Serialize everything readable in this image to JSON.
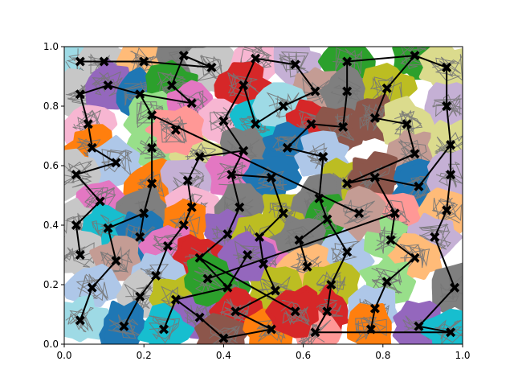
{
  "chart_data": {
    "type": "scatter",
    "title": "",
    "xlabel": "",
    "ylabel": "",
    "xlim": [
      0,
      1
    ],
    "ylim": [
      0,
      1
    ],
    "x_ticks": [
      "0.0",
      "0.2",
      "0.4",
      "0.6",
      "0.8",
      "1.0"
    ],
    "y_ticks": [
      "0.0",
      "0.2",
      "0.4",
      "0.6",
      "0.8",
      "1.0"
    ],
    "grid": false,
    "legend": "none",
    "marker": "X",
    "marker_color": "#000000",
    "edge_color": "#000000",
    "region_colors": [
      "#1f77b4",
      "#aec7e8",
      "#ff7f0e",
      "#ffbb78",
      "#2ca02c",
      "#98df8a",
      "#d62728",
      "#ff9896",
      "#9467bd",
      "#c5b0d5",
      "#8c564b",
      "#c49c94",
      "#e377c2",
      "#f7b6d2",
      "#7f7f7f",
      "#c7c7c7",
      "#bcbd22",
      "#dbdb8d",
      "#17becf",
      "#9edae5"
    ],
    "points": [
      {
        "x": 0.04,
        "y": 0.95,
        "c": 19
      },
      {
        "x": 0.1,
        "y": 0.95,
        "c": 15
      },
      {
        "x": 0.2,
        "y": 0.95,
        "c": 3
      },
      {
        "x": 0.3,
        "y": 0.97,
        "c": 14
      },
      {
        "x": 0.37,
        "y": 0.93,
        "c": 15
      },
      {
        "x": 0.48,
        "y": 0.96,
        "c": 13
      },
      {
        "x": 0.58,
        "y": 0.94,
        "c": 9
      },
      {
        "x": 0.71,
        "y": 0.95,
        "c": 4
      },
      {
        "x": 0.88,
        "y": 0.97,
        "c": 4
      },
      {
        "x": 0.96,
        "y": 0.93,
        "c": 17
      },
      {
        "x": 0.04,
        "y": 0.84,
        "c": 15
      },
      {
        "x": 0.11,
        "y": 0.87,
        "c": 8
      },
      {
        "x": 0.19,
        "y": 0.84,
        "c": 0
      },
      {
        "x": 0.27,
        "y": 0.87,
        "c": 4
      },
      {
        "x": 0.45,
        "y": 0.87,
        "c": 6
      },
      {
        "x": 0.63,
        "y": 0.85,
        "c": 11
      },
      {
        "x": 0.71,
        "y": 0.85,
        "c": 14
      },
      {
        "x": 0.81,
        "y": 0.86,
        "c": 16
      },
      {
        "x": 0.96,
        "y": 0.8,
        "c": 9
      },
      {
        "x": 0.06,
        "y": 0.74,
        "c": 13
      },
      {
        "x": 0.22,
        "y": 0.77,
        "c": 5
      },
      {
        "x": 0.32,
        "y": 0.81,
        "c": 12
      },
      {
        "x": 0.4,
        "y": 0.75,
        "c": 13
      },
      {
        "x": 0.48,
        "y": 0.74,
        "c": 18
      },
      {
        "x": 0.55,
        "y": 0.8,
        "c": 19
      },
      {
        "x": 0.62,
        "y": 0.74,
        "c": 6
      },
      {
        "x": 0.7,
        "y": 0.73,
        "c": 10
      },
      {
        "x": 0.78,
        "y": 0.76,
        "c": 10
      },
      {
        "x": 0.86,
        "y": 0.74,
        "c": 17
      },
      {
        "x": 0.07,
        "y": 0.66,
        "c": 2
      },
      {
        "x": 0.22,
        "y": 0.66,
        "c": 5
      },
      {
        "x": 0.34,
        "y": 0.63,
        "c": 17
      },
      {
        "x": 0.45,
        "y": 0.65,
        "c": 14
      },
      {
        "x": 0.56,
        "y": 0.66,
        "c": 0
      },
      {
        "x": 0.65,
        "y": 0.63,
        "c": 1
      },
      {
        "x": 0.88,
        "y": 0.64,
        "c": 11
      },
      {
        "x": 0.97,
        "y": 0.67,
        "c": 17
      },
      {
        "x": 0.13,
        "y": 0.61,
        "c": 1
      },
      {
        "x": 0.03,
        "y": 0.57,
        "c": 15
      },
      {
        "x": 0.22,
        "y": 0.54,
        "c": 2
      },
      {
        "x": 0.31,
        "y": 0.55,
        "c": 9
      },
      {
        "x": 0.42,
        "y": 0.57,
        "c": 12
      },
      {
        "x": 0.52,
        "y": 0.56,
        "c": 0
      },
      {
        "x": 0.71,
        "y": 0.54,
        "c": 16
      },
      {
        "x": 0.78,
        "y": 0.56,
        "c": 10
      },
      {
        "x": 0.89,
        "y": 0.53,
        "c": 0
      },
      {
        "x": 0.97,
        "y": 0.57,
        "c": 9
      },
      {
        "x": 0.09,
        "y": 0.48,
        "c": 12
      },
      {
        "x": 0.2,
        "y": 0.44,
        "c": 14
      },
      {
        "x": 0.32,
        "y": 0.46,
        "c": 13
      },
      {
        "x": 0.44,
        "y": 0.46,
        "c": 14
      },
      {
        "x": 0.55,
        "y": 0.44,
        "c": 16
      },
      {
        "x": 0.64,
        "y": 0.49,
        "c": 14
      },
      {
        "x": 0.66,
        "y": 0.42,
        "c": 4
      },
      {
        "x": 0.83,
        "y": 0.44,
        "c": 7
      },
      {
        "x": 0.96,
        "y": 0.45,
        "c": 3
      },
      {
        "x": 0.03,
        "y": 0.4,
        "c": 15
      },
      {
        "x": 0.11,
        "y": 0.39,
        "c": 18
      },
      {
        "x": 0.19,
        "y": 0.36,
        "c": 0
      },
      {
        "x": 0.3,
        "y": 0.4,
        "c": 2
      },
      {
        "x": 0.41,
        "y": 0.37,
        "c": 8
      },
      {
        "x": 0.49,
        "y": 0.36,
        "c": 16
      },
      {
        "x": 0.59,
        "y": 0.35,
        "c": 14
      },
      {
        "x": 0.71,
        "y": 0.31,
        "c": 1
      },
      {
        "x": 0.82,
        "y": 0.35,
        "c": 5
      },
      {
        "x": 0.93,
        "y": 0.36,
        "c": 9
      },
      {
        "x": 0.04,
        "y": 0.3,
        "c": 15
      },
      {
        "x": 0.13,
        "y": 0.28,
        "c": 11
      },
      {
        "x": 0.26,
        "y": 0.33,
        "c": 12
      },
      {
        "x": 0.34,
        "y": 0.29,
        "c": 6
      },
      {
        "x": 0.5,
        "y": 0.27,
        "c": 12
      },
      {
        "x": 0.61,
        "y": 0.26,
        "c": 3
      },
      {
        "x": 0.88,
        "y": 0.29,
        "c": 3
      },
      {
        "x": 0.23,
        "y": 0.23,
        "c": 1
      },
      {
        "x": 0.41,
        "y": 0.19,
        "c": 4
      },
      {
        "x": 0.53,
        "y": 0.18,
        "c": 16
      },
      {
        "x": 0.67,
        "y": 0.2,
        "c": 16
      },
      {
        "x": 0.81,
        "y": 0.21,
        "c": 5
      },
      {
        "x": 0.98,
        "y": 0.19,
        "c": 14
      },
      {
        "x": 0.07,
        "y": 0.19,
        "c": 1
      },
      {
        "x": 0.19,
        "y": 0.16,
        "c": 15
      },
      {
        "x": 0.28,
        "y": 0.15,
        "c": 16
      },
      {
        "x": 0.34,
        "y": 0.09,
        "c": 8
      },
      {
        "x": 0.43,
        "y": 0.11,
        "c": 6
      },
      {
        "x": 0.66,
        "y": 0.11,
        "c": 6
      },
      {
        "x": 0.78,
        "y": 0.12,
        "c": 1
      },
      {
        "x": 0.04,
        "y": 0.08,
        "c": 19
      },
      {
        "x": 0.15,
        "y": 0.06,
        "c": 0
      },
      {
        "x": 0.25,
        "y": 0.05,
        "c": 18
      },
      {
        "x": 0.4,
        "y": 0.02,
        "c": 10
      },
      {
        "x": 0.52,
        "y": 0.05,
        "c": 2
      },
      {
        "x": 0.63,
        "y": 0.04,
        "c": 7
      },
      {
        "x": 0.77,
        "y": 0.05,
        "c": 2
      },
      {
        "x": 0.89,
        "y": 0.06,
        "c": 8
      },
      {
        "x": 0.97,
        "y": 0.04,
        "c": 18
      },
      {
        "x": 0.58,
        "y": 0.11,
        "c": 6
      },
      {
        "x": 0.46,
        "y": 0.3,
        "c": 8
      },
      {
        "x": 0.36,
        "y": 0.22,
        "c": 4
      },
      {
        "x": 0.74,
        "y": 0.44,
        "c": 11
      },
      {
        "x": 0.28,
        "y": 0.72,
        "c": 7
      }
    ],
    "edges": [
      [
        0,
        1
      ],
      [
        1,
        2
      ],
      [
        2,
        4
      ],
      [
        3,
        4
      ],
      [
        5,
        6
      ],
      [
        6,
        15
      ],
      [
        7,
        16
      ],
      [
        8,
        17
      ],
      [
        8,
        9
      ],
      [
        10,
        11
      ],
      [
        11,
        12
      ],
      [
        12,
        21
      ],
      [
        13,
        21
      ],
      [
        14,
        23
      ],
      [
        14,
        5
      ],
      [
        15,
        24
      ],
      [
        16,
        26
      ],
      [
        17,
        27
      ],
      [
        18,
        9
      ],
      [
        19,
        10
      ],
      [
        20,
        12
      ],
      [
        22,
        14
      ],
      [
        23,
        24
      ],
      [
        25,
        26
      ],
      [
        27,
        28
      ],
      [
        28,
        35
      ],
      [
        29,
        19
      ],
      [
        30,
        20
      ],
      [
        31,
        32
      ],
      [
        32,
        22
      ],
      [
        33,
        25
      ],
      [
        34,
        33
      ],
      [
        35,
        43
      ],
      [
        36,
        18
      ],
      [
        37,
        29
      ],
      [
        38,
        37
      ],
      [
        39,
        30
      ],
      [
        40,
        31
      ],
      [
        41,
        32
      ],
      [
        42,
        41
      ],
      [
        43,
        44
      ],
      [
        45,
        44
      ],
      [
        46,
        36
      ],
      [
        47,
        38
      ],
      [
        48,
        39
      ],
      [
        49,
        40
      ],
      [
        50,
        41
      ],
      [
        51,
        42
      ],
      [
        52,
        34
      ],
      [
        53,
        52
      ],
      [
        54,
        44
      ],
      [
        55,
        46
      ],
      [
        56,
        47
      ],
      [
        57,
        48
      ],
      [
        58,
        48
      ],
      [
        59,
        49
      ],
      [
        60,
        50
      ],
      [
        61,
        51
      ],
      [
        62,
        53
      ],
      [
        63,
        53
      ],
      [
        64,
        54
      ],
      [
        65,
        55
      ],
      [
        66,
        56
      ],
      [
        67,
        57
      ],
      [
        68,
        59
      ],
      [
        69,
        60
      ],
      [
        70,
        61
      ],
      [
        71,
        62
      ],
      [
        72,
        64
      ],
      [
        73,
        68
      ],
      [
        74,
        69
      ],
      [
        75,
        70
      ],
      [
        76,
        63
      ],
      [
        77,
        72
      ],
      [
        78,
        65
      ],
      [
        79,
        67
      ],
      [
        80,
        73
      ],
      [
        81,
        74
      ],
      [
        82,
        81
      ],
      [
        83,
        75
      ],
      [
        84,
        76
      ],
      [
        85,
        77
      ],
      [
        86,
        79
      ],
      [
        87,
        80
      ],
      [
        88,
        81
      ],
      [
        89,
        82
      ],
      [
        90,
        83
      ],
      [
        91,
        84
      ],
      [
        92,
        85
      ],
      [
        93,
        78
      ],
      [
        94,
        91
      ],
      [
        95,
        69
      ],
      [
        96,
        74
      ],
      [
        97,
        54
      ],
      [
        98,
        20
      ],
      [
        89,
        90
      ],
      [
        93,
        94
      ],
      [
        45,
        36
      ],
      [
        3,
        13
      ],
      [
        7,
        8
      ]
    ]
  }
}
